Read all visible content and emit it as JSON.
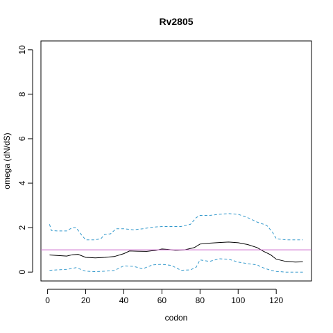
{
  "chart_data": {
    "type": "line",
    "title": "Rv2805",
    "xlabel": "codon",
    "ylabel": "omega (dN/dS)",
    "xlim": [
      -3.5,
      138.5
    ],
    "ylim": [
      -0.4,
      10.4
    ],
    "xticks": [
      0,
      20,
      40,
      60,
      80,
      100,
      120
    ],
    "yticks": [
      0,
      2,
      4,
      6,
      8,
      10
    ],
    "grid": false,
    "legend": "none",
    "reference_line": {
      "y": 1,
      "color": "#cc66cc"
    },
    "series": [
      {
        "role": "estimate",
        "color": "#000000",
        "dash": "solid",
        "x": [
          1,
          5,
          10,
          13,
          16,
          20,
          25,
          30,
          35,
          40,
          43,
          47,
          52,
          57,
          60,
          63,
          67,
          72,
          77,
          80,
          85,
          90,
          95,
          100,
          105,
          110,
          113,
          117,
          120,
          125,
          130,
          134
        ],
        "y": [
          0.77,
          0.75,
          0.72,
          0.78,
          0.8,
          0.66,
          0.64,
          0.66,
          0.7,
          0.83,
          0.95,
          0.94,
          0.93,
          0.98,
          1.04,
          1.02,
          0.98,
          1.0,
          1.1,
          1.26,
          1.3,
          1.33,
          1.35,
          1.32,
          1.24,
          1.1,
          0.95,
          0.78,
          0.58,
          0.48,
          0.45,
          0.46
        ]
      },
      {
        "role": "upper",
        "color": "#3399cc",
        "dash": "dashed",
        "x": [
          1,
          2,
          5,
          10,
          13,
          15,
          18,
          20,
          25,
          28,
          30,
          33,
          36,
          40,
          45,
          50,
          55,
          60,
          65,
          70,
          75,
          78,
          80,
          85,
          90,
          95,
          100,
          105,
          110,
          115,
          118,
          120,
          125,
          130,
          134
        ],
        "y": [
          2.15,
          1.87,
          1.85,
          1.85,
          2.0,
          2.0,
          1.65,
          1.45,
          1.45,
          1.5,
          1.7,
          1.72,
          1.95,
          1.95,
          1.9,
          1.95,
          2.02,
          2.05,
          2.05,
          2.05,
          2.15,
          2.45,
          2.55,
          2.55,
          2.6,
          2.63,
          2.6,
          2.45,
          2.25,
          2.1,
          1.8,
          1.5,
          1.45,
          1.45,
          1.45
        ]
      },
      {
        "role": "lower",
        "color": "#3399cc",
        "dash": "dashed",
        "x": [
          1,
          5,
          10,
          15,
          20,
          25,
          30,
          35,
          40,
          45,
          50,
          55,
          60,
          65,
          70,
          75,
          78,
          80,
          85,
          90,
          95,
          100,
          105,
          110,
          113,
          117,
          120,
          125,
          130,
          134
        ],
        "y": [
          0.08,
          0.1,
          0.12,
          0.2,
          0.04,
          0.02,
          0.04,
          0.07,
          0.28,
          0.26,
          0.15,
          0.32,
          0.35,
          0.3,
          0.08,
          0.1,
          0.22,
          0.55,
          0.48,
          0.6,
          0.58,
          0.45,
          0.38,
          0.32,
          0.2,
          0.08,
          0.03,
          0.0,
          0.0,
          0.0
        ]
      }
    ]
  }
}
